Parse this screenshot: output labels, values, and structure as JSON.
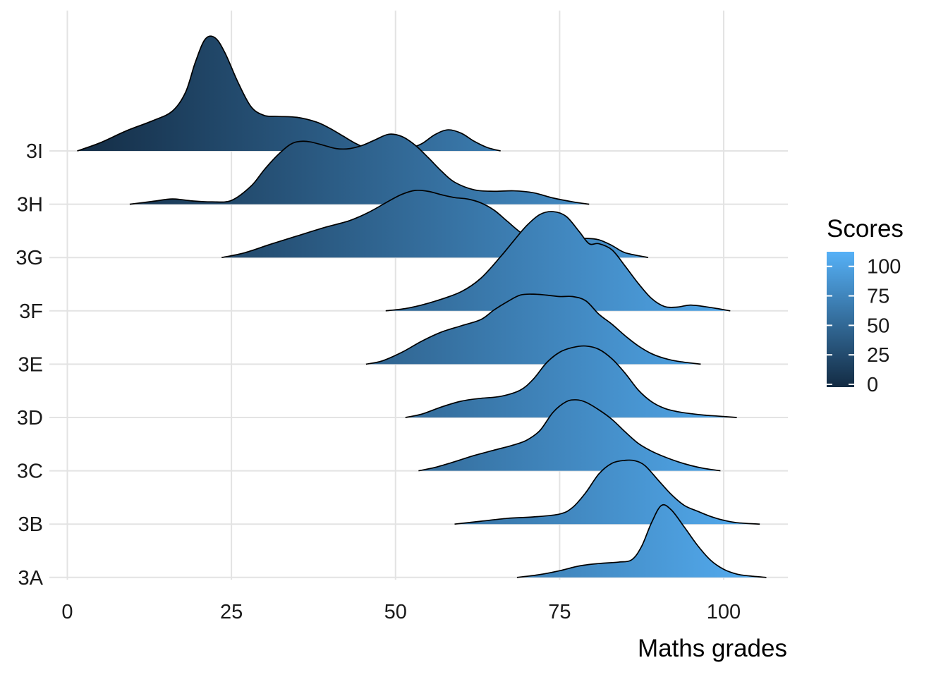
{
  "chart_data": {
    "type": "ridgeline",
    "xlabel": "Maths grades",
    "ylabel": "",
    "xlim": [
      -3,
      107.5
    ],
    "x_ticks": [
      0,
      25,
      50,
      75,
      100
    ],
    "x_tick_labels": [
      "0",
      "25",
      "50",
      "75",
      "100"
    ],
    "categories": [
      "3A",
      "3B",
      "3C",
      "3D",
      "3E",
      "3F",
      "3G",
      "3H",
      "3I"
    ],
    "fill_gradient": {
      "by": "x",
      "low_color": "#132b43",
      "high_color": "#56b1f7",
      "range": [
        0,
        110
      ]
    },
    "legend": {
      "title": "Scores",
      "position": "right",
      "ticks": [
        0,
        25,
        50,
        75,
        100
      ],
      "tick_labels": [
        "0",
        "25",
        "50",
        "75",
        "100"
      ]
    },
    "grid": true,
    "series": [
      {
        "name": "3A",
        "x": [
          68.5,
          72,
          75,
          78,
          81,
          84,
          86,
          87.5,
          89,
          90.5,
          92,
          94,
          96,
          98,
          100,
          102,
          104,
          106.5
        ],
        "density": [
          0,
          0.06,
          0.14,
          0.24,
          0.29,
          0.32,
          0.37,
          0.65,
          1.14,
          1.5,
          1.41,
          1.05,
          0.67,
          0.36,
          0.17,
          0.07,
          0.03,
          0
        ]
      },
      {
        "name": "3B",
        "x": [
          59,
          63,
          67,
          71,
          75,
          77,
          79,
          81,
          83,
          85,
          86.5,
          88,
          90,
          92,
          94,
          96,
          98,
          100,
          102,
          105.5
        ],
        "density": [
          0,
          0.06,
          0.12,
          0.15,
          0.21,
          0.35,
          0.66,
          1.05,
          1.27,
          1.33,
          1.32,
          1.22,
          0.92,
          0.62,
          0.39,
          0.27,
          0.16,
          0.08,
          0.03,
          0
        ]
      },
      {
        "name": "3C",
        "x": [
          53.5,
          56,
          59,
          62,
          65,
          68,
          70,
          72,
          74,
          76,
          77.5,
          79,
          81,
          83,
          85,
          87,
          89,
          91,
          93,
          95,
          97,
          99.5
        ],
        "density": [
          0,
          0.07,
          0.19,
          0.32,
          0.43,
          0.54,
          0.64,
          0.84,
          1.22,
          1.44,
          1.48,
          1.43,
          1.27,
          1.07,
          0.81,
          0.57,
          0.41,
          0.29,
          0.19,
          0.11,
          0.05,
          0
        ]
      },
      {
        "name": "3D",
        "x": [
          51.5,
          54,
          57,
          60,
          63,
          66,
          69,
          71,
          73,
          75,
          77,
          79,
          81,
          83,
          85,
          87,
          89,
          91,
          93,
          95,
          97,
          99,
          102
        ],
        "density": [
          0,
          0.07,
          0.22,
          0.34,
          0.4,
          0.44,
          0.57,
          0.8,
          1.14,
          1.36,
          1.46,
          1.49,
          1.42,
          1.22,
          0.92,
          0.57,
          0.33,
          0.19,
          0.12,
          0.08,
          0.05,
          0.03,
          0
        ]
      },
      {
        "name": "3E",
        "x": [
          45.5,
          48,
          51,
          54,
          57,
          60,
          63,
          65,
          67,
          69,
          71,
          73,
          75,
          77,
          79,
          81,
          83,
          85,
          87,
          89,
          91,
          93,
          96.5
        ],
        "density": [
          0,
          0.07,
          0.25,
          0.48,
          0.67,
          0.8,
          0.93,
          1.13,
          1.3,
          1.44,
          1.46,
          1.44,
          1.41,
          1.41,
          1.32,
          1.04,
          0.83,
          0.59,
          0.38,
          0.22,
          0.12,
          0.06,
          0
        ]
      },
      {
        "name": "3F",
        "x": [
          48.5,
          52,
          56,
          60,
          63,
          66,
          68,
          70,
          72,
          74,
          76,
          78,
          79.5,
          81,
          83,
          85,
          87,
          89,
          91,
          93,
          95,
          98,
          101
        ],
        "density": [
          0,
          0.06,
          0.2,
          0.4,
          0.68,
          1.13,
          1.46,
          1.78,
          2.01,
          2.07,
          1.97,
          1.65,
          1.4,
          1.4,
          1.27,
          0.93,
          0.57,
          0.26,
          0.09,
          0.08,
          0.12,
          0.07,
          0
        ]
      },
      {
        "name": "3G",
        "x": [
          23.5,
          27,
          31,
          35,
          39,
          43,
          46,
          49,
          51,
          53,
          55,
          57,
          59,
          61,
          63,
          65,
          67,
          69,
          71,
          73,
          75.5,
          77,
          79,
          81,
          83,
          85,
          88.5
        ],
        "density": [
          0,
          0.1,
          0.28,
          0.45,
          0.62,
          0.77,
          0.95,
          1.18,
          1.32,
          1.4,
          1.38,
          1.31,
          1.25,
          1.22,
          1.14,
          0.99,
          0.76,
          0.53,
          0.37,
          0.28,
          0.2,
          0.38,
          0.4,
          0.37,
          0.25,
          0.1,
          0
        ]
      },
      {
        "name": "3H",
        "x": [
          9.5,
          13,
          16,
          19,
          22,
          25,
          28,
          30,
          32,
          34,
          35.5,
          37,
          39,
          41,
          43,
          45,
          47,
          49,
          51,
          53,
          55,
          57,
          59,
          62,
          65,
          68,
          71,
          74,
          77,
          79.5
        ],
        "density": [
          0,
          0.06,
          0.11,
          0.07,
          0.05,
          0.08,
          0.38,
          0.72,
          1.02,
          1.25,
          1.31,
          1.3,
          1.23,
          1.16,
          1.16,
          1.23,
          1.35,
          1.46,
          1.41,
          1.23,
          0.97,
          0.69,
          0.46,
          0.3,
          0.27,
          0.28,
          0.24,
          0.13,
          0.05,
          0
        ]
      },
      {
        "name": "3I",
        "x": [
          1.5,
          5,
          9,
          13,
          16,
          18,
          19.5,
          21,
          22.5,
          24,
          26,
          28,
          30,
          32,
          35,
          38,
          40,
          42,
          44,
          46,
          48,
          50,
          52,
          54,
          56,
          58,
          60,
          62,
          64,
          66
        ],
        "density": [
          0,
          0.17,
          0.42,
          0.63,
          0.83,
          1.22,
          1.85,
          2.33,
          2.36,
          2.05,
          1.43,
          0.92,
          0.74,
          0.72,
          0.7,
          0.6,
          0.47,
          0.31,
          0.15,
          0.04,
          0.01,
          0.01,
          0.05,
          0.15,
          0.34,
          0.44,
          0.37,
          0.2,
          0.07,
          0
        ]
      }
    ]
  }
}
